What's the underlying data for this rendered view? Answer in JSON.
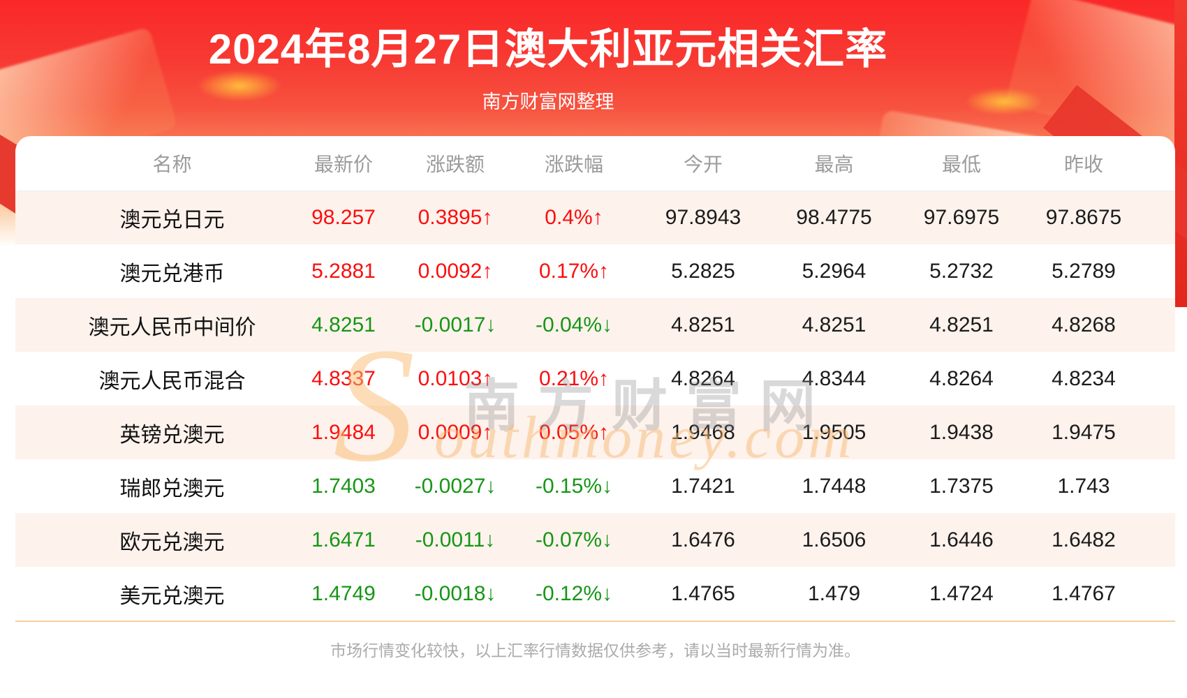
{
  "header": {
    "title": "2024年8月27日澳大利亚元相关汇率",
    "subtitle": "南方财富网整理"
  },
  "table": {
    "columns": [
      "名称",
      "最新价",
      "涨跌额",
      "涨跌幅",
      "今开",
      "最高",
      "最低",
      "昨收"
    ],
    "rows": [
      {
        "name": "澳元兑日元",
        "latest": "98.257",
        "change": "0.3895↑",
        "change_pct": "0.4%↑",
        "direction": "up",
        "open": "97.8943",
        "high": "98.4775",
        "low": "97.6975",
        "prev_close": "97.8675"
      },
      {
        "name": "澳元兑港币",
        "latest": "5.2881",
        "change": "0.0092↑",
        "change_pct": "0.17%↑",
        "direction": "up",
        "open": "5.2825",
        "high": "5.2964",
        "low": "5.2732",
        "prev_close": "5.2789"
      },
      {
        "name": "澳元人民币中间价",
        "latest": "4.8251",
        "change": "-0.0017↓",
        "change_pct": "-0.04%↓",
        "direction": "down",
        "open": "4.8251",
        "high": "4.8251",
        "low": "4.8251",
        "prev_close": "4.8268"
      },
      {
        "name": "澳元人民币混合",
        "latest": "4.8337",
        "change": "0.0103↑",
        "change_pct": "0.21%↑",
        "direction": "up",
        "open": "4.8264",
        "high": "4.8344",
        "low": "4.8264",
        "prev_close": "4.8234"
      },
      {
        "name": "英镑兑澳元",
        "latest": "1.9484",
        "change": "0.0009↑",
        "change_pct": "0.05%↑",
        "direction": "up",
        "open": "1.9468",
        "high": "1.9505",
        "low": "1.9438",
        "prev_close": "1.9475"
      },
      {
        "name": "瑞郎兑澳元",
        "latest": "1.7403",
        "change": "-0.0027↓",
        "change_pct": "-0.15%↓",
        "direction": "down",
        "open": "1.7421",
        "high": "1.7448",
        "low": "1.7375",
        "prev_close": "1.743"
      },
      {
        "name": "欧元兑澳元",
        "latest": "1.6471",
        "change": "-0.0011↓",
        "change_pct": "-0.07%↓",
        "direction": "down",
        "open": "1.6476",
        "high": "1.6506",
        "low": "1.6446",
        "prev_close": "1.6482"
      },
      {
        "name": "美元兑澳元",
        "latest": "1.4749",
        "change": "-0.0018↓",
        "change_pct": "-0.12%↓",
        "direction": "down",
        "open": "1.4765",
        "high": "1.479",
        "low": "1.4724",
        "prev_close": "1.4767"
      }
    ]
  },
  "watermark": {
    "s_glyph": "S",
    "cn_text": "南方财富网",
    "en_text": "outhmoney.com"
  },
  "footer": {
    "note": "市场行情变化较快，以上汇率行情数据仅供参考，请以当时最新行情为准。"
  },
  "colors": {
    "up_red": "#fb0e0e",
    "down_green": "#169616",
    "row_alt_bg": "#fdf2ec",
    "header_text_gray": "#9b9b9b",
    "banner_red_top": "#fa2828",
    "banner_peach_bottom": "#fbca9f",
    "divider_tan": "#f6cf9e",
    "watermark_gold": "#f7ba6e"
  }
}
